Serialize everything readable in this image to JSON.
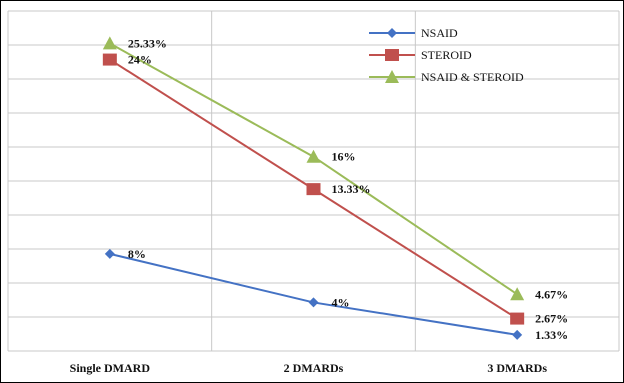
{
  "chart_data": {
    "type": "line",
    "categories": [
      "Single DMARD",
      "2 DMARDs",
      "3 DMARDs"
    ],
    "ylim": [
      0,
      28
    ],
    "grid": true,
    "legend_position": "top-right",
    "series": [
      {
        "name": "NSAID",
        "values": [
          8,
          4,
          1.33
        ],
        "labels": [
          "8%",
          "4%",
          "1.33%"
        ],
        "color": "#4472C4",
        "marker": "diamond"
      },
      {
        "name": "STEROID",
        "values": [
          24,
          13.33,
          2.67
        ],
        "labels": [
          "24%",
          "13.33%",
          "2.67%"
        ],
        "color": "#C0504D",
        "marker": "square"
      },
      {
        "name": "NSAID & STEROID",
        "values": [
          25.33,
          16,
          4.67
        ],
        "labels": [
          "25.33%",
          "16%",
          "4.67%"
        ],
        "color": "#9BBB59",
        "marker": "triangle"
      }
    ]
  }
}
